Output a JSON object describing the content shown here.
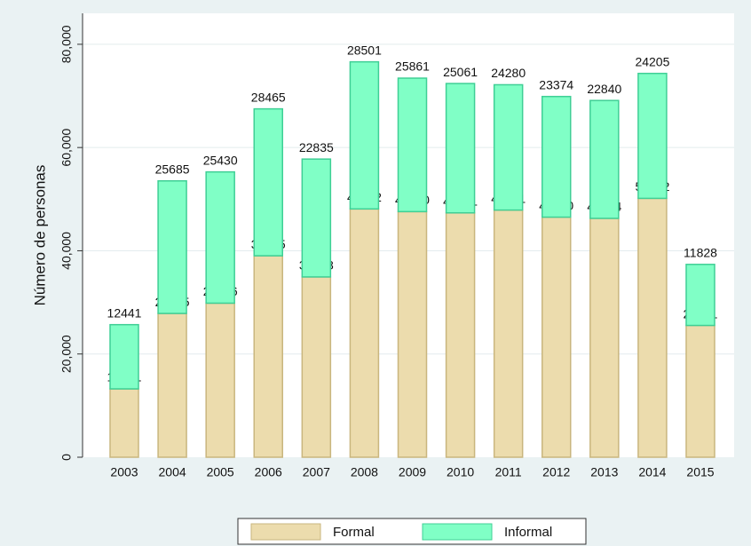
{
  "chart_data": {
    "type": "stacked_bar",
    "ylabel": "Número de personas",
    "categories": [
      "2003",
      "2004",
      "2005",
      "2006",
      "2007",
      "2008",
      "2009",
      "2010",
      "2011",
      "2012",
      "2013",
      "2014",
      "2015"
    ],
    "series": [
      {
        "name": "Formal",
        "color": "#ecdcad",
        "values": [
          13241,
          27855,
          29846,
          39025,
          34928,
          48102,
          47580,
          47341,
          47881,
          46510,
          46274,
          50152,
          25531
        ]
      },
      {
        "name": "Informal",
        "color": "#80ffc6",
        "values": [
          12441,
          25685,
          25430,
          28465,
          22835,
          28501,
          25861,
          25061,
          24280,
          23374,
          22840,
          24205,
          11828
        ]
      }
    ],
    "ylim": [
      0,
      86000
    ],
    "yticks": [
      0,
      {
        "value": 20000,
        "label": "20,000"
      },
      {
        "value": 40000,
        "label": "40,000"
      },
      {
        "value": 60000,
        "label": "60,000"
      },
      {
        "value": 80000,
        "label": "80,000"
      }
    ],
    "grid": true,
    "legend": "bottom"
  }
}
